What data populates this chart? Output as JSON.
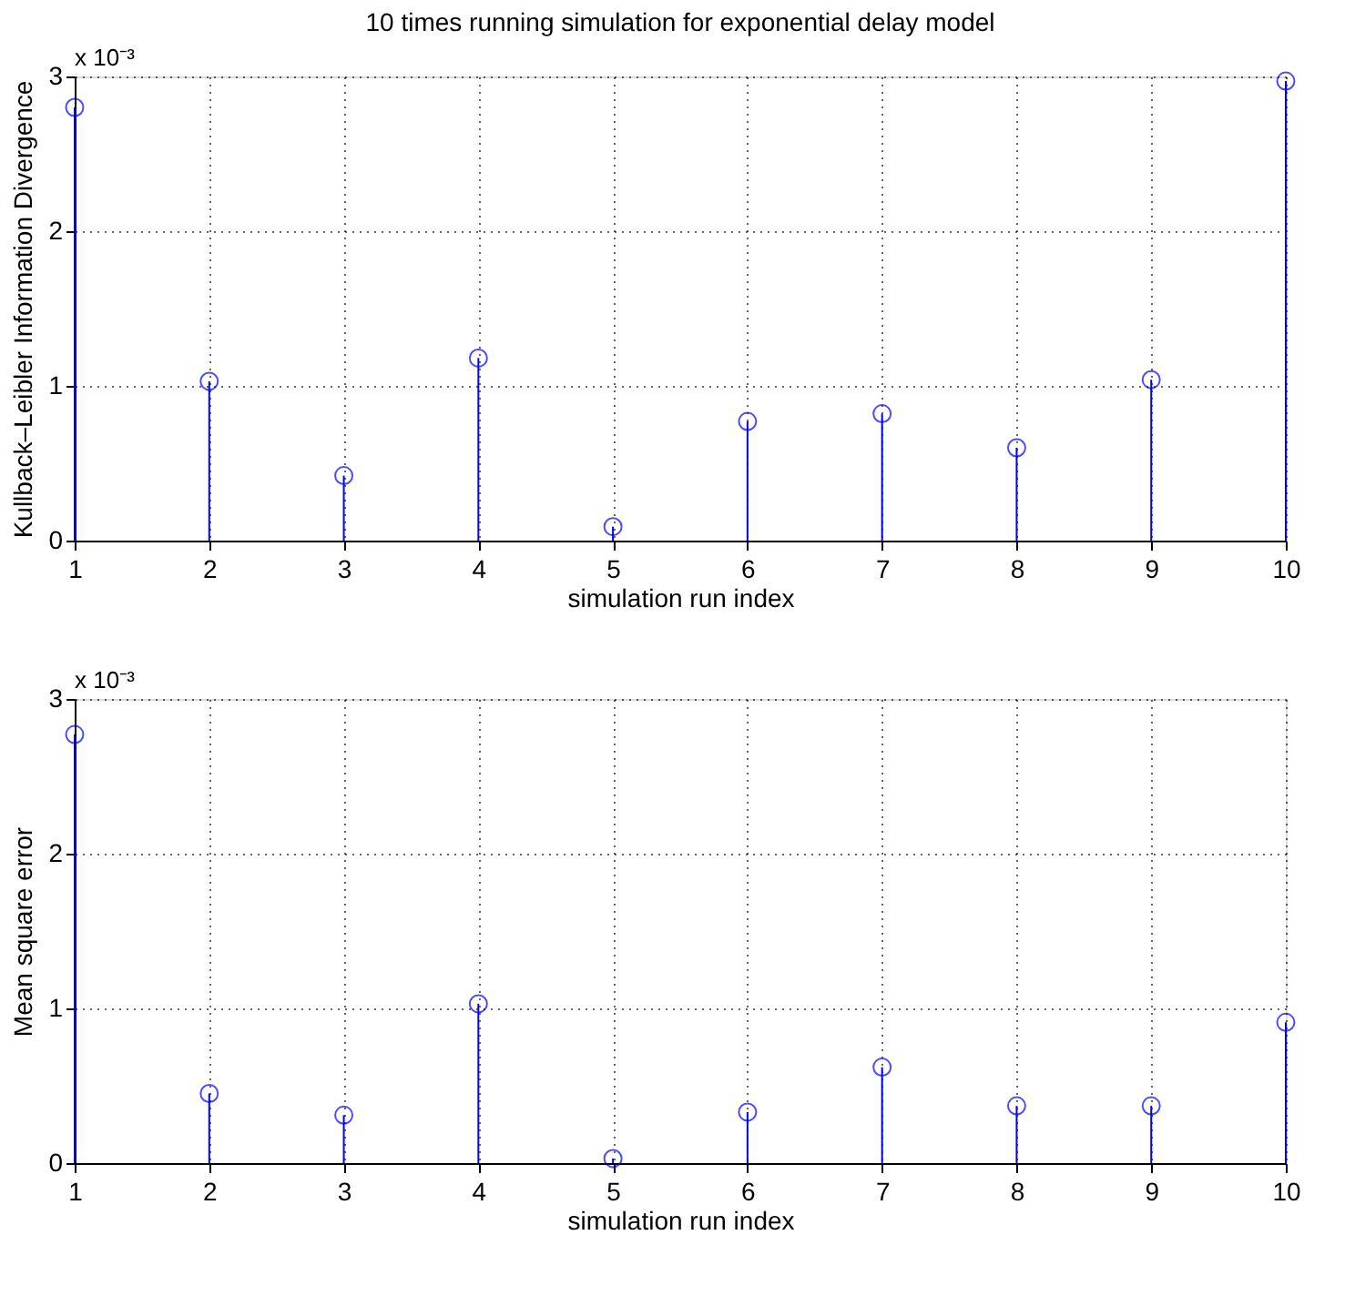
{
  "chart_data": [
    {
      "type": "lollipop",
      "title": "10 times running simulation for exponential delay model",
      "xlabel": "simulation run index",
      "ylabel": "Kullback–Leibler Information Divergence",
      "annotations": [
        "x 10⁻³"
      ],
      "x": [
        1,
        2,
        3,
        4,
        5,
        6,
        7,
        8,
        9,
        10
      ],
      "series": [
        {
          "color": "#0000ff",
          "values": [
            2.8,
            1.03,
            0.42,
            1.18,
            0.09,
            0.77,
            0.82,
            0.6,
            1.04,
            2.97
          ]
        }
      ],
      "xlim": [
        1,
        10
      ],
      "xticks": [
        1,
        2,
        3,
        4,
        5,
        6,
        7,
        8,
        9,
        10
      ],
      "ylim": [
        0,
        3
      ],
      "yticks": [
        0,
        1,
        2,
        3
      ],
      "grid": true,
      "marker": "circle"
    },
    {
      "type": "lollipop",
      "xlabel": "simulation run index",
      "ylabel": "Mean square error",
      "annotations": [
        "x 10⁻³"
      ],
      "x": [
        1,
        2,
        3,
        4,
        5,
        6,
        7,
        8,
        9,
        10
      ],
      "series": [
        {
          "color": "#0000ff",
          "values": [
            2.77,
            0.45,
            0.31,
            1.03,
            0.03,
            0.33,
            0.62,
            0.37,
            0.37,
            0.91
          ]
        }
      ],
      "xlim": [
        1,
        10
      ],
      "xticks": [
        1,
        2,
        3,
        4,
        5,
        6,
        7,
        8,
        9,
        10
      ],
      "ylim": [
        0,
        3
      ],
      "yticks": [
        0,
        1,
        2,
        3
      ],
      "grid": true,
      "marker": "circle"
    }
  ]
}
